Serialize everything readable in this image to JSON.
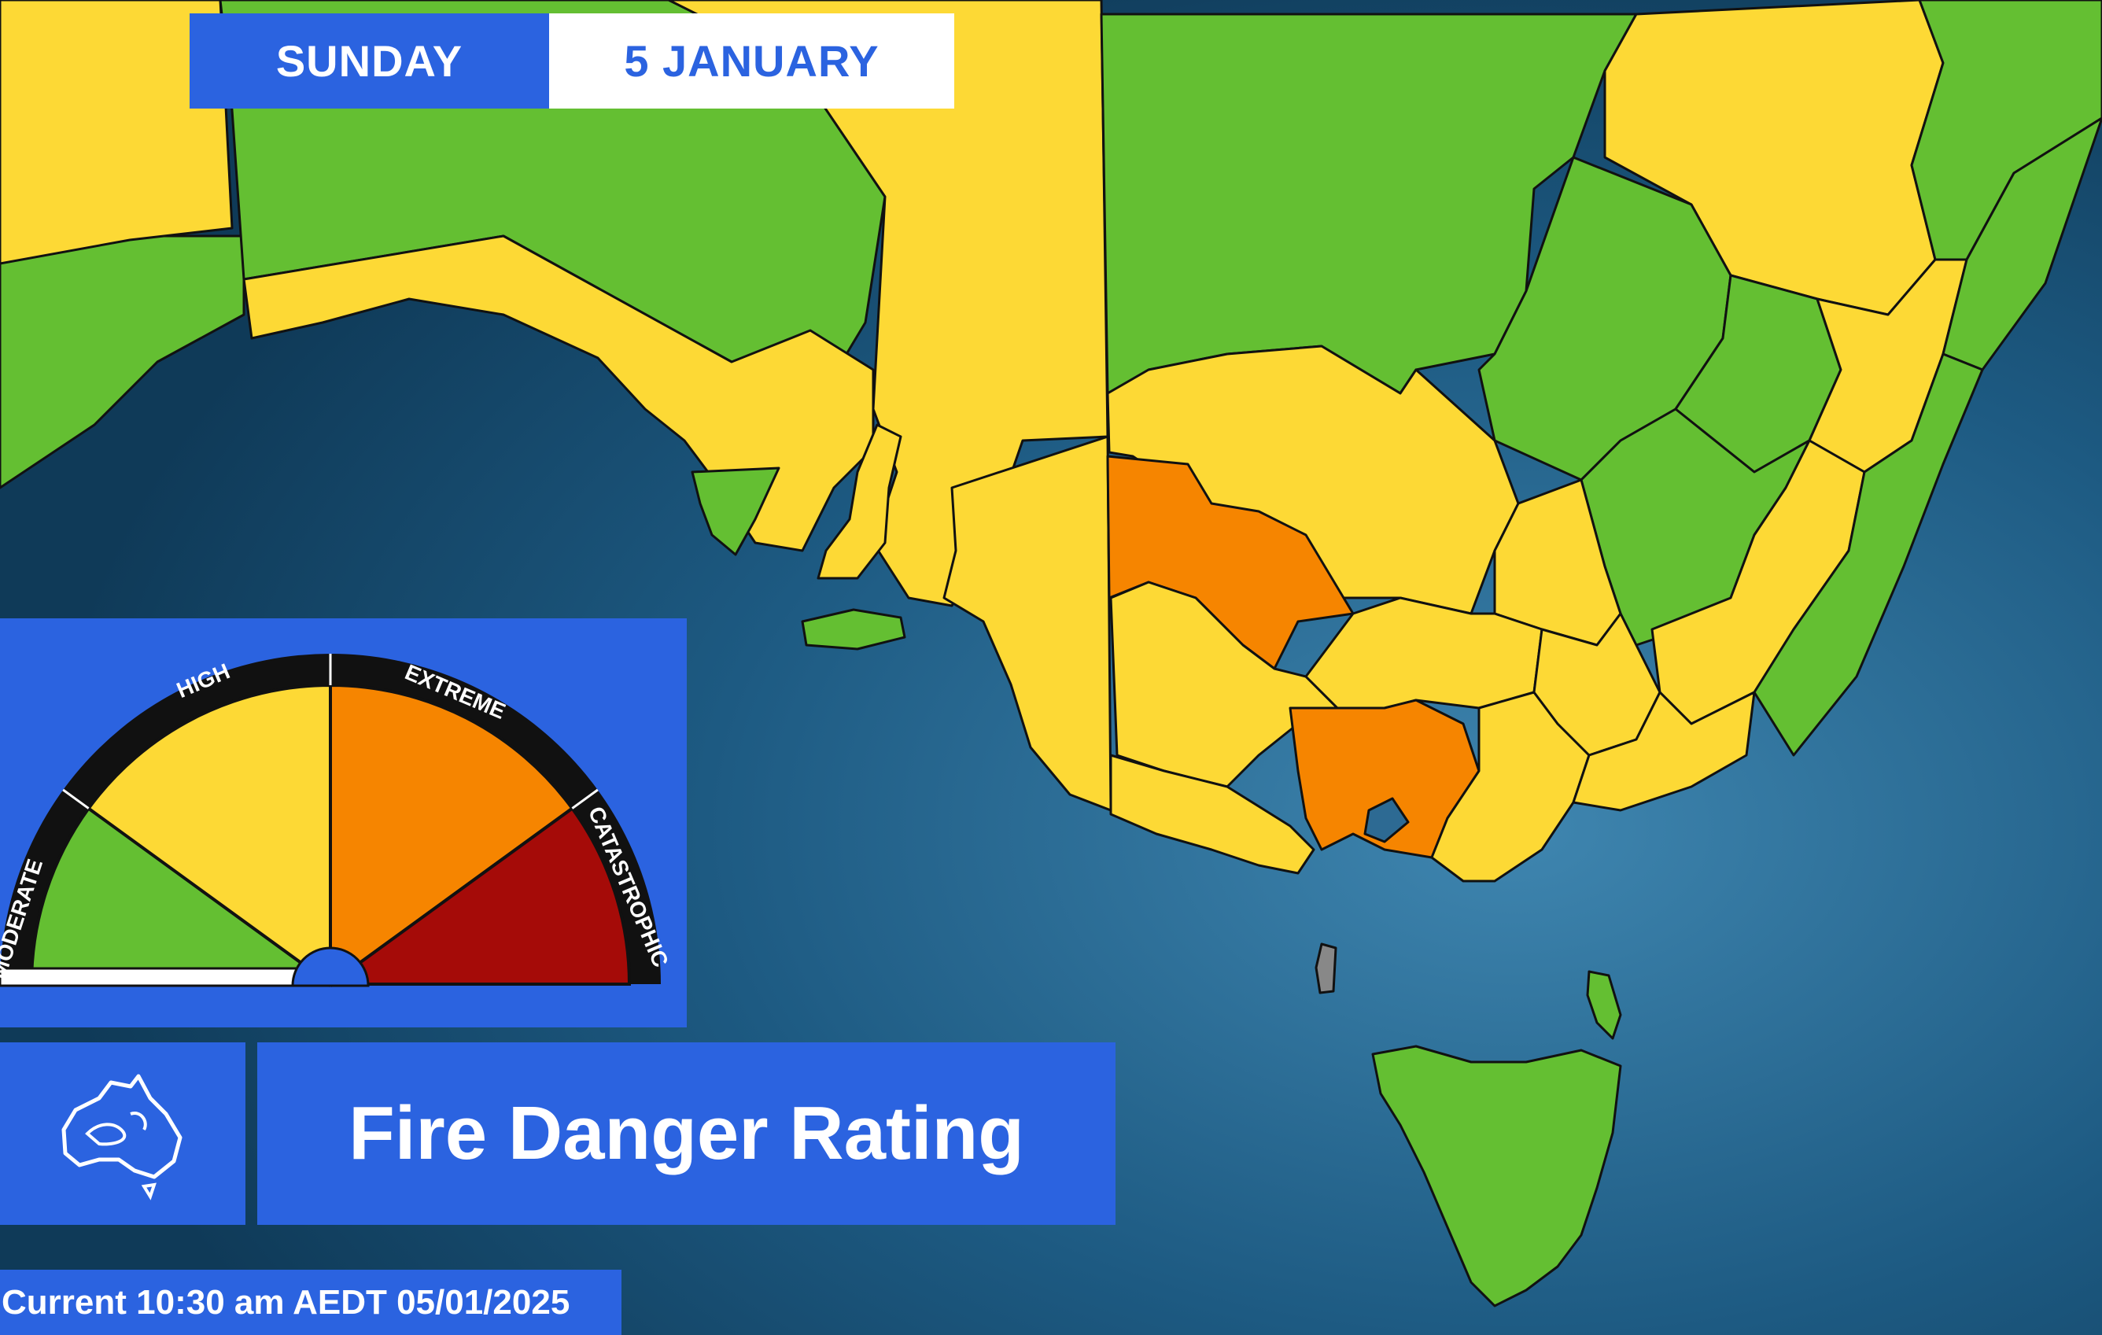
{
  "header": {
    "day": "SUNDAY",
    "date": "5 JANUARY"
  },
  "legend": {
    "levels": [
      {
        "label": "MODERATE",
        "color": "#64bf32"
      },
      {
        "label": "HIGH",
        "color": "#fdd935"
      },
      {
        "label": "EXTREME",
        "color": "#f68500"
      },
      {
        "label": "CATASTROPHIC",
        "color": "#a50b08"
      }
    ],
    "icon": "australia-outline-icon"
  },
  "title": "Fire Danger Rating",
  "timestamp": "Current 10:30 am AEDT 05/01/2025",
  "colors": {
    "panel_blue": "#2b63e0",
    "ocean": "#17486b"
  }
}
